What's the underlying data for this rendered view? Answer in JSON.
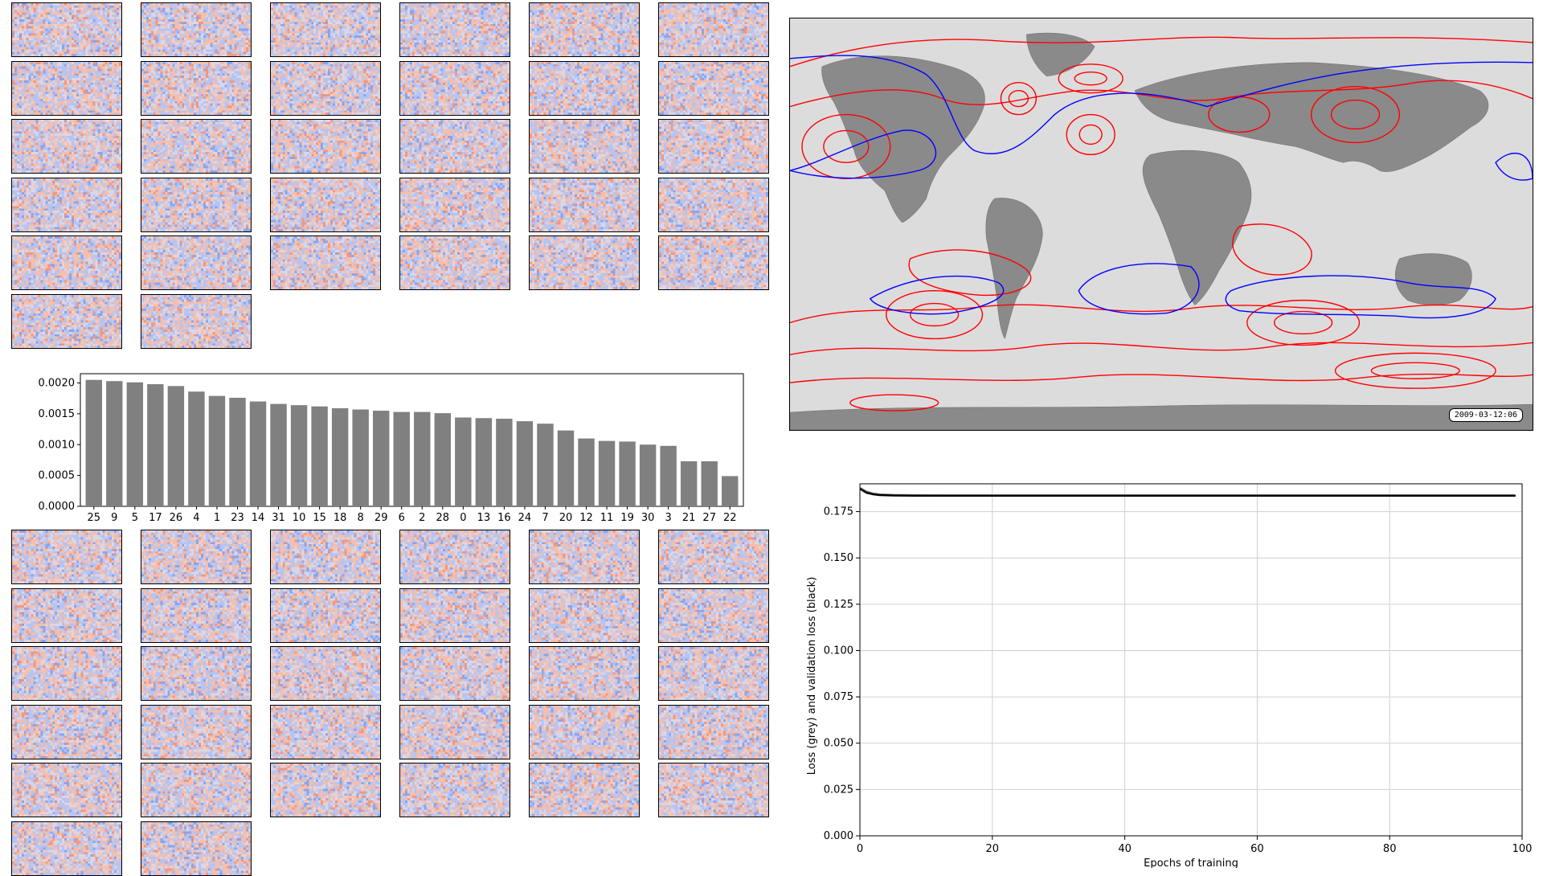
{
  "weights_top": {
    "rows": 6,
    "cols": 6,
    "count": 32
  },
  "weights_bottom": {
    "rows": 6,
    "cols": 6,
    "count": 32
  },
  "colors": {
    "bar": "#808080",
    "loss": "#000000",
    "contour_warm": "#ff0000",
    "contour_cold": "#0000ff",
    "ocean": "#dcdcdc",
    "land": "#8a8a8a"
  },
  "map": {
    "date": "2009-03-12:06"
  },
  "chart_data": [
    {
      "type": "bar",
      "categories": [
        "25",
        "9",
        "5",
        "17",
        "26",
        "4",
        "1",
        "23",
        "14",
        "31",
        "10",
        "15",
        "18",
        "8",
        "29",
        "6",
        "2",
        "28",
        "0",
        "13",
        "16",
        "24",
        "7",
        "20",
        "12",
        "11",
        "19",
        "30",
        "3",
        "21",
        "27",
        "22"
      ],
      "values": [
        0.00205,
        0.00203,
        0.00201,
        0.00198,
        0.00195,
        0.00186,
        0.00179,
        0.00176,
        0.0017,
        0.00166,
        0.00164,
        0.00162,
        0.00159,
        0.00157,
        0.00155,
        0.00153,
        0.00153,
        0.00151,
        0.00144,
        0.00143,
        0.00142,
        0.00138,
        0.00134,
        0.00123,
        0.0011,
        0.00106,
        0.00105,
        0.001,
        0.00098,
        0.00073,
        0.00073,
        0.00049
      ],
      "ylim": [
        0,
        0.00215
      ],
      "yticks": [
        "0.0000",
        "0.0005",
        "0.0010",
        "0.0015",
        "0.0020"
      ],
      "ytick_values": [
        0,
        0.0005,
        0.001,
        0.0015,
        0.002
      ],
      "grid": false
    },
    {
      "type": "line",
      "xlabel": "Epochs of training",
      "ylabel": "Loss (grey) and validation loss (black)",
      "xlim": [
        0,
        100
      ],
      "ylim": [
        0,
        0.19
      ],
      "xticks": [
        "0",
        "20",
        "40",
        "60",
        "80",
        "100"
      ],
      "xtick_values": [
        0,
        20,
        40,
        60,
        80,
        100
      ],
      "yticks": [
        "0.000",
        "0.025",
        "0.050",
        "0.075",
        "0.100",
        "0.125",
        "0.150",
        "0.175"
      ],
      "ytick_values": [
        0,
        0.025,
        0.05,
        0.075,
        0.1,
        0.125,
        0.15,
        0.175
      ],
      "grid": true,
      "series": [
        {
          "color": "grey",
          "x": [
            0,
            1,
            2,
            3,
            5,
            8,
            12,
            20,
            40,
            60,
            80,
            99
          ],
          "y": [
            0.1878,
            0.1858,
            0.1848,
            0.1843,
            0.184,
            0.1839,
            0.1838,
            0.1838,
            0.1838,
            0.1838,
            0.1838,
            0.1838
          ]
        },
        {
          "color": "black",
          "x": [
            0,
            1,
            2,
            3,
            5,
            8,
            12,
            20,
            40,
            60,
            80,
            99
          ],
          "y": [
            0.1874,
            0.1852,
            0.1843,
            0.1839,
            0.1837,
            0.1836,
            0.1836,
            0.1836,
            0.1836,
            0.1836,
            0.1836,
            0.1836
          ]
        }
      ]
    }
  ]
}
